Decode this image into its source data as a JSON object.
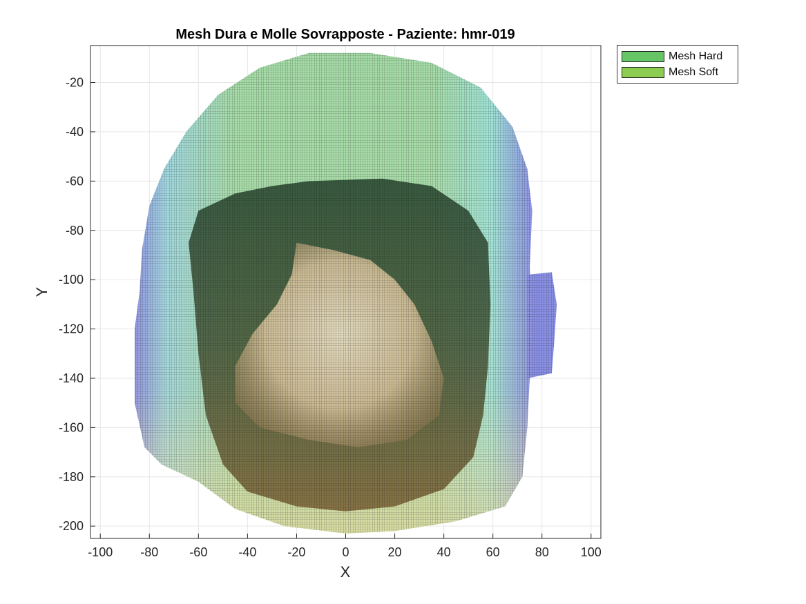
{
  "chart_data": {
    "type": "heatmap",
    "title": "Mesh Dura e Molle Sovrapposte - Paziente: hmr-019",
    "xlabel": "X",
    "ylabel": "Y",
    "xlim": [
      -104,
      104
    ],
    "ylim": [
      -205,
      -5
    ],
    "xticks": [
      -100,
      -80,
      -60,
      -40,
      -20,
      0,
      20,
      40,
      60,
      80,
      100
    ],
    "yticks": [
      -200,
      -180,
      -160,
      -140,
      -120,
      -100,
      -80,
      -60,
      -40,
      -20
    ],
    "grid": true,
    "legend_placement": "outside-top-right",
    "series": [
      {
        "name": "Mesh Hard",
        "color": "#66c666",
        "outline": [
          [
            -15,
            -8
          ],
          [
            10,
            -8
          ],
          [
            35,
            -12
          ],
          [
            55,
            -22
          ],
          [
            68,
            -38
          ],
          [
            74,
            -55
          ],
          [
            76,
            -72
          ],
          [
            75,
            -95
          ],
          [
            76,
            -120
          ],
          [
            75,
            -140
          ],
          [
            74,
            -160
          ],
          [
            72,
            -180
          ],
          [
            65,
            -192
          ],
          [
            45,
            -198
          ],
          [
            20,
            -202
          ],
          [
            0,
            -203
          ],
          [
            -25,
            -200
          ],
          [
            -45,
            -193
          ],
          [
            -60,
            -182
          ],
          [
            -75,
            -175
          ],
          [
            -82,
            -168
          ],
          [
            -86,
            -150
          ],
          [
            -86,
            -120
          ],
          [
            -84,
            -105
          ],
          [
            -83,
            -88
          ],
          [
            -80,
            -70
          ],
          [
            -74,
            -55
          ],
          [
            -65,
            -40
          ],
          [
            -52,
            -25
          ],
          [
            -35,
            -14
          ]
        ]
      },
      {
        "name": "Mesh Soft",
        "color": "#8ccc50",
        "outline": [
          [
            -15,
            -60
          ],
          [
            15,
            -59
          ],
          [
            35,
            -62
          ],
          [
            50,
            -72
          ],
          [
            58,
            -85
          ],
          [
            59,
            -110
          ],
          [
            58,
            -135
          ],
          [
            56,
            -155
          ],
          [
            52,
            -172
          ],
          [
            40,
            -185
          ],
          [
            20,
            -192
          ],
          [
            0,
            -194
          ],
          [
            -20,
            -192
          ],
          [
            -40,
            -186
          ],
          [
            -50,
            -175
          ],
          [
            -57,
            -155
          ],
          [
            -60,
            -130
          ],
          [
            -62,
            -105
          ],
          [
            -64,
            -85
          ],
          [
            -60,
            -72
          ],
          [
            -45,
            -65
          ],
          [
            -30,
            -62
          ]
        ]
      }
    ],
    "extra_outlines": {
      "right_ear": [
        [
          74,
          -98
        ],
        [
          84,
          -97
        ],
        [
          86,
          -110
        ],
        [
          85,
          -125
        ],
        [
          84,
          -138
        ],
        [
          74,
          -140
        ]
      ],
      "inner_bright": [
        [
          -20,
          -85
        ],
        [
          -5,
          -88
        ],
        [
          10,
          -92
        ],
        [
          20,
          -100
        ],
        [
          28,
          -110
        ],
        [
          35,
          -125
        ],
        [
          40,
          -140
        ],
        [
          38,
          -155
        ],
        [
          25,
          -165
        ],
        [
          5,
          -168
        ],
        [
          -15,
          -165
        ],
        [
          -35,
          -160
        ],
        [
          -45,
          -150
        ],
        [
          -45,
          -135
        ],
        [
          -38,
          -122
        ],
        [
          -28,
          -110
        ],
        [
          -22,
          -98
        ]
      ]
    }
  },
  "colors": {
    "background": "#ffffff",
    "axis": "#262626",
    "grid": "#e6e6e6",
    "hard_edge": "#7f8fe8",
    "hard_cyan": "#9fe3d8",
    "hard_top": "#a6dca8",
    "hard_bottom": "#eadfa8",
    "soft_dark": "#2a4a30",
    "soft_bottom": "#6e5a34",
    "inner_bright": "#e8d8b8"
  }
}
